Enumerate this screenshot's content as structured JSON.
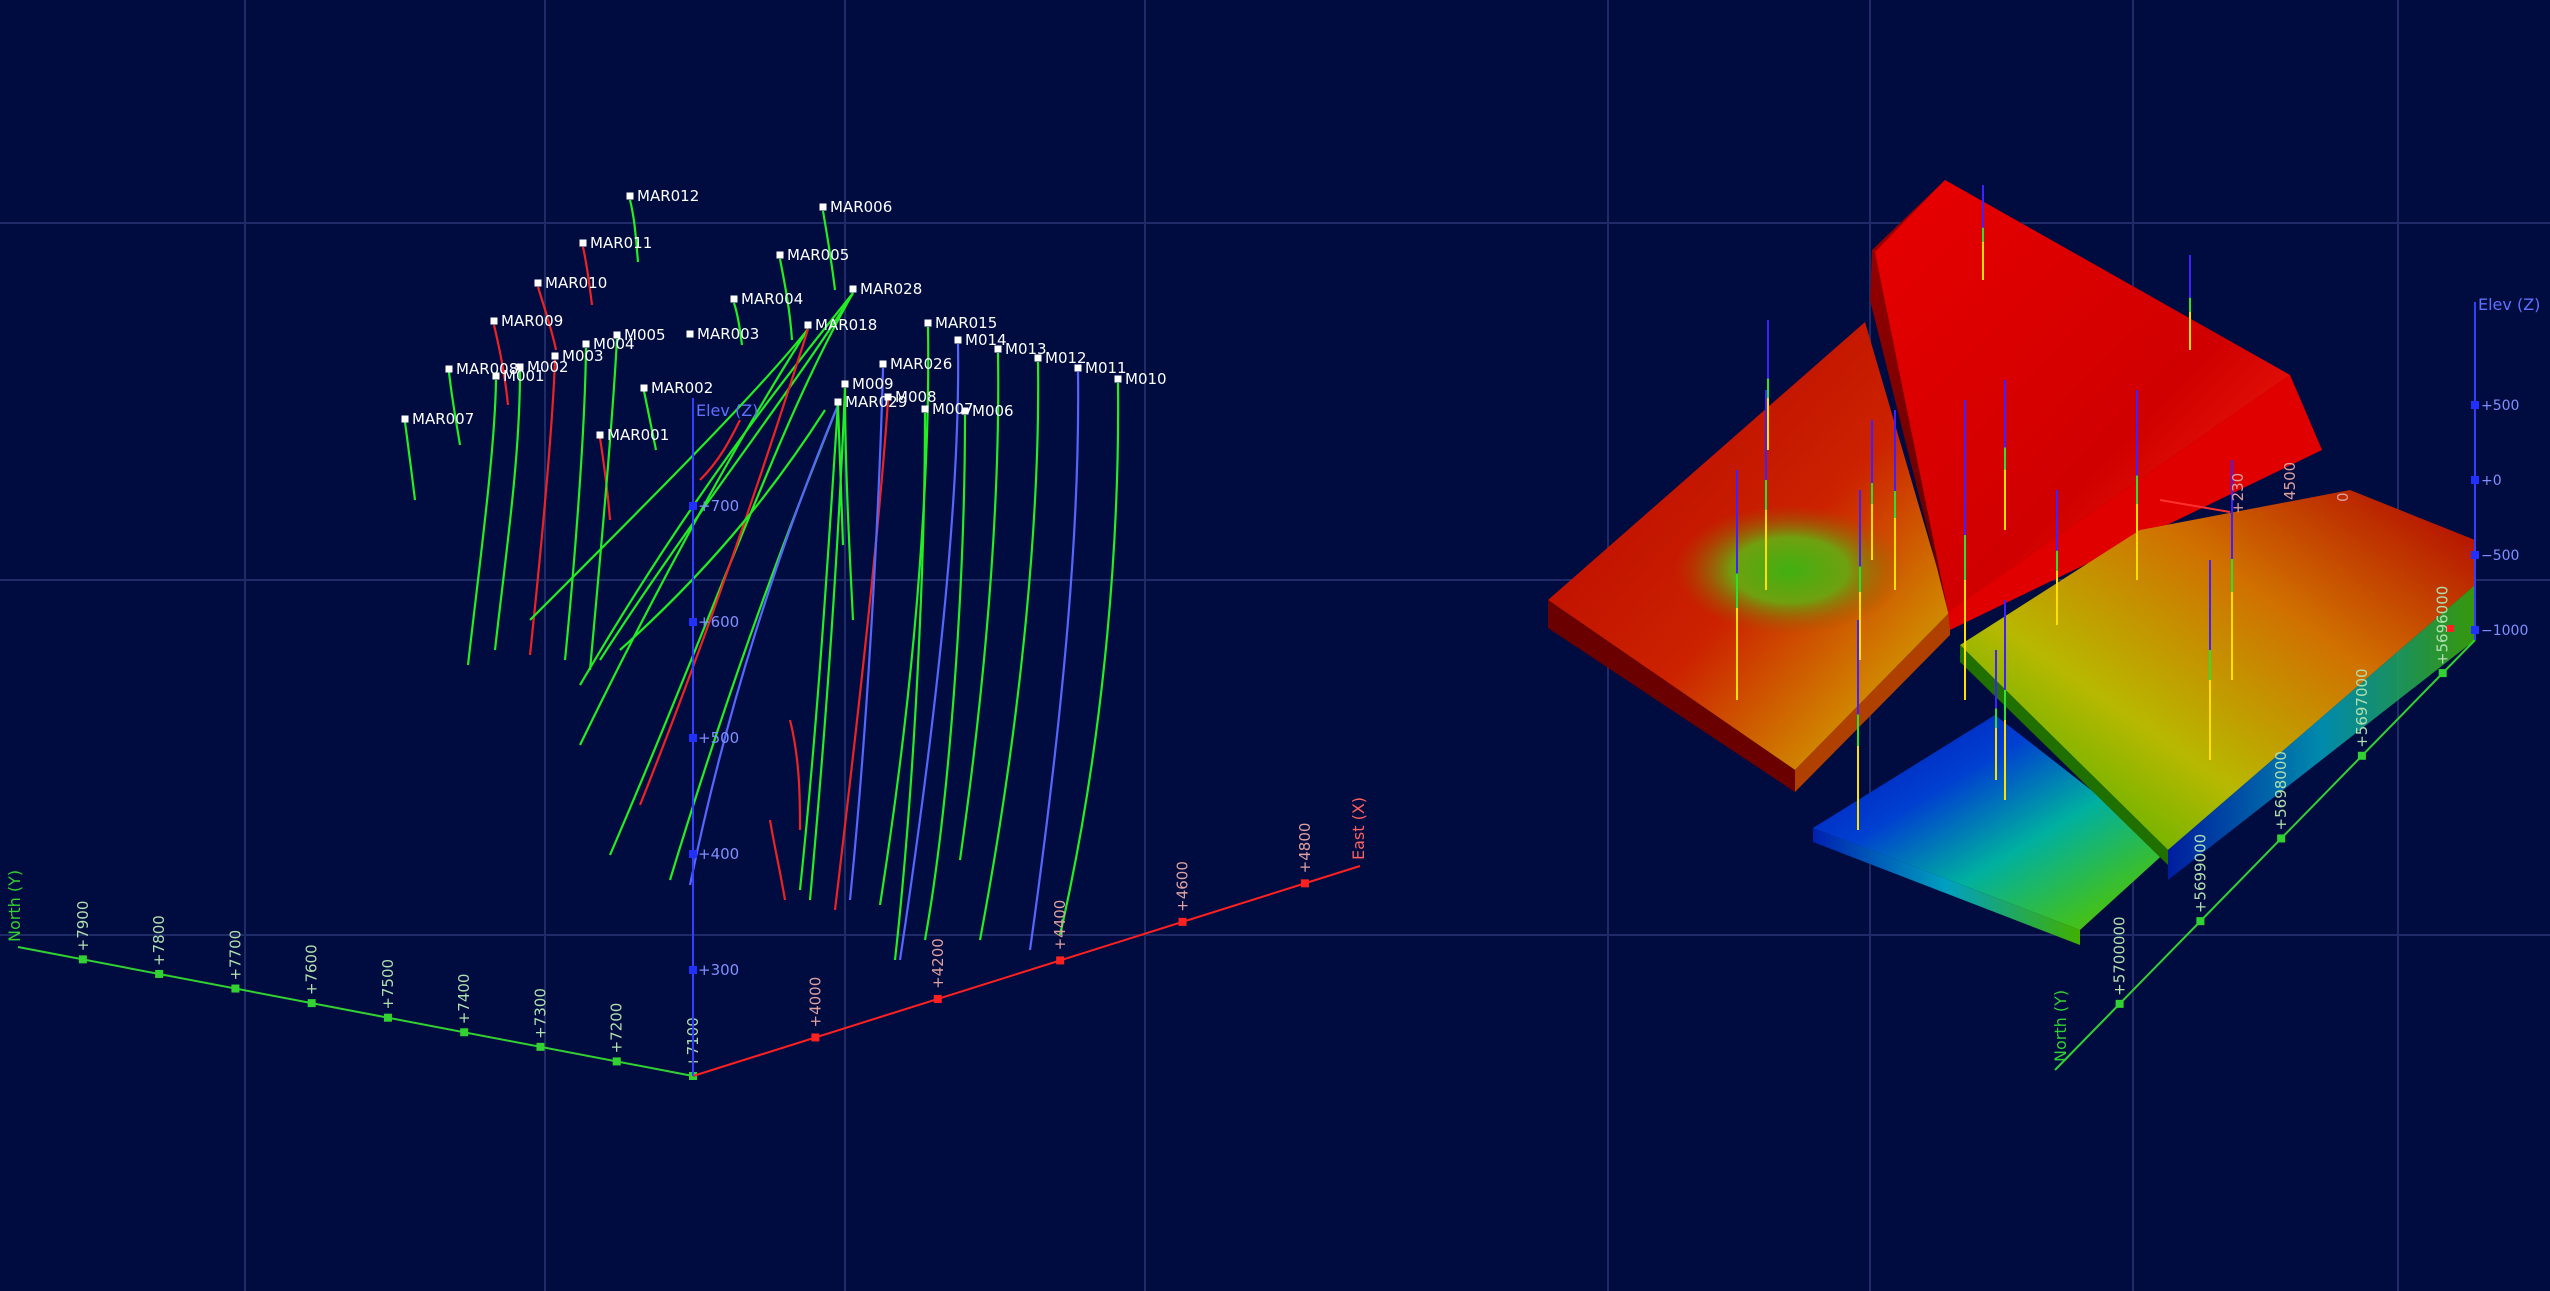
{
  "colors": {
    "background": "#000c40",
    "grid": "#1e2b66",
    "north_axis": "#32d232",
    "east_axis": "#ff2020",
    "elev_axis": "#4a5cff",
    "hole_green": "#22ee22",
    "hole_red": "#ee2222",
    "hole_blue": "#5566ff",
    "collar_label": "#ffffff"
  },
  "left_view": {
    "north_axis": {
      "title": "North (Y)",
      "ticks": [
        "+7900",
        "+7800",
        "+7700",
        "+7600",
        "+7500",
        "+7400",
        "+7300",
        "+7200",
        "+7100"
      ]
    },
    "east_axis": {
      "title": "East (X)",
      "ticks": [
        "+4000",
        "+4200",
        "+4400",
        "+4600",
        "+4800"
      ]
    },
    "elev_axis": {
      "title": "Elev (Z)",
      "ticks": [
        "+700",
        "+600",
        "+500",
        "+400",
        "+300"
      ]
    },
    "collars": [
      "MAR012",
      "MAR006",
      "MAR011",
      "MAR005",
      "MAR010",
      "MAR004",
      "MAR028",
      "MAR009",
      "MAR018",
      "MAR015",
      "M005",
      "MAR003",
      "M014",
      "M004",
      "M013",
      "M003",
      "M012",
      "MAR026",
      "MAR008",
      "M002",
      "M011",
      "M001",
      "M010",
      "M009",
      "MAR002",
      "M008",
      "MAR029",
      "M007",
      "M006",
      "MAR007",
      "MAR001"
    ]
  },
  "right_view": {
    "north_axis": {
      "title": "North (Y)",
      "ticks": [
        "+5700000",
        "+5699000",
        "+5698000",
        "+5697000",
        "+5696000"
      ]
    },
    "elev_axis": {
      "title": "Elev (Z)",
      "ticks": [
        "+500",
        "+0",
        "−500",
        "−1000"
      ]
    },
    "east_ticks": [
      "+230",
      "4500",
      "0"
    ]
  }
}
